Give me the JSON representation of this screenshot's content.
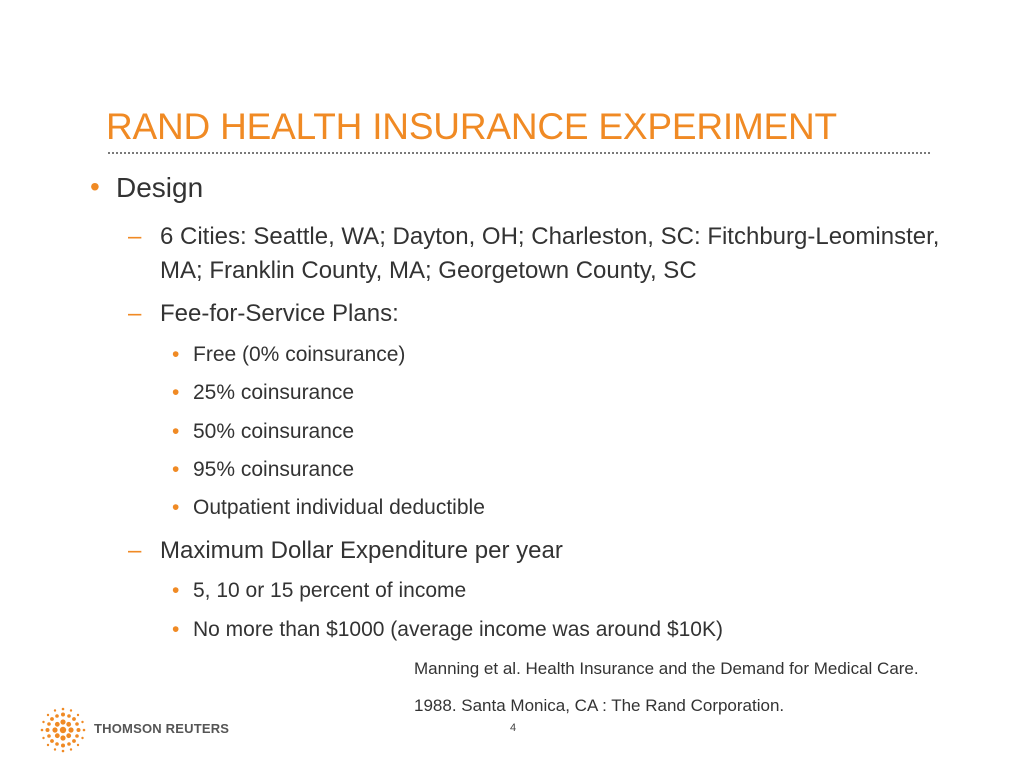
{
  "slide": {
    "title": "RAND HEALTH INSURANCE EXPERIMENT",
    "bullet_char": "•",
    "dash_char": "–",
    "level1": "Design",
    "level2": [
      {
        "text": "6 Cities: Seattle, WA; Dayton, OH; Charleston, SC: Fitchburg-Leominster, MA; Franklin County, MA; Georgetown County, SC"
      },
      {
        "text": "Fee-for-Service Plans:"
      },
      {
        "text": "Maximum Dollar Expenditure per year"
      }
    ],
    "fee_plans": [
      "Free (0% coinsurance)",
      "25% coinsurance",
      "50% coinsurance",
      "95% coinsurance",
      "Outpatient individual deductible"
    ],
    "max_expenditure": [
      "5, 10 or 15 percent of income",
      "No more than $1000 (average income was around $10K)"
    ],
    "citation_line1": "Manning et al. Health Insurance and the Demand for Medical Care.",
    "citation_line2": "1988. Santa Monica, CA : The Rand Corporation.",
    "page_number": "4",
    "logo_text": "THOMSON REUTERS"
  },
  "colors": {
    "accent": "#f08a24",
    "text": "#333333",
    "logo_text": "#555555"
  },
  "icons": {
    "logo": "thomson-reuters-dot-sphere-icon"
  }
}
